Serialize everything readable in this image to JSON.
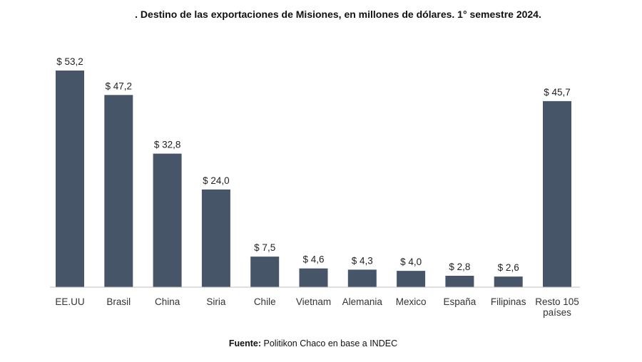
{
  "chart_data": {
    "type": "bar",
    "title": ". Destino de las exportaciones de Misiones, en millones de dólares. 1° semestre 2024.",
    "categories": [
      [
        "EE.UU"
      ],
      [
        "Brasil"
      ],
      [
        "China"
      ],
      [
        "Siria"
      ],
      [
        "Chile"
      ],
      [
        "Vietnam"
      ],
      [
        "Alemania"
      ],
      [
        "Mexico"
      ],
      [
        "España"
      ],
      [
        "Filipinas"
      ],
      [
        "Resto 105",
        "países"
      ]
    ],
    "values": [
      53.2,
      47.2,
      32.8,
      24.0,
      7.5,
      4.6,
      4.3,
      4.0,
      2.8,
      2.6,
      45.7
    ],
    "value_labels": [
      "$ 53,2",
      "$ 47,2",
      "$ 32,8",
      "$ 24,0",
      "$ 7,5",
      "$ 4,6",
      "$ 4,3",
      "$ 4,0",
      "$ 2,8",
      "$ 2,6",
      "$ 45,7"
    ],
    "xlabel": "",
    "ylabel": "",
    "ylim": [
      0,
      53.2
    ],
    "grid": false,
    "colors": {
      "bar": "#475569",
      "axis": "#bfbfbf"
    }
  },
  "source": {
    "label": "Fuente:",
    "text": " Politikon Chaco en base a INDEC"
  }
}
